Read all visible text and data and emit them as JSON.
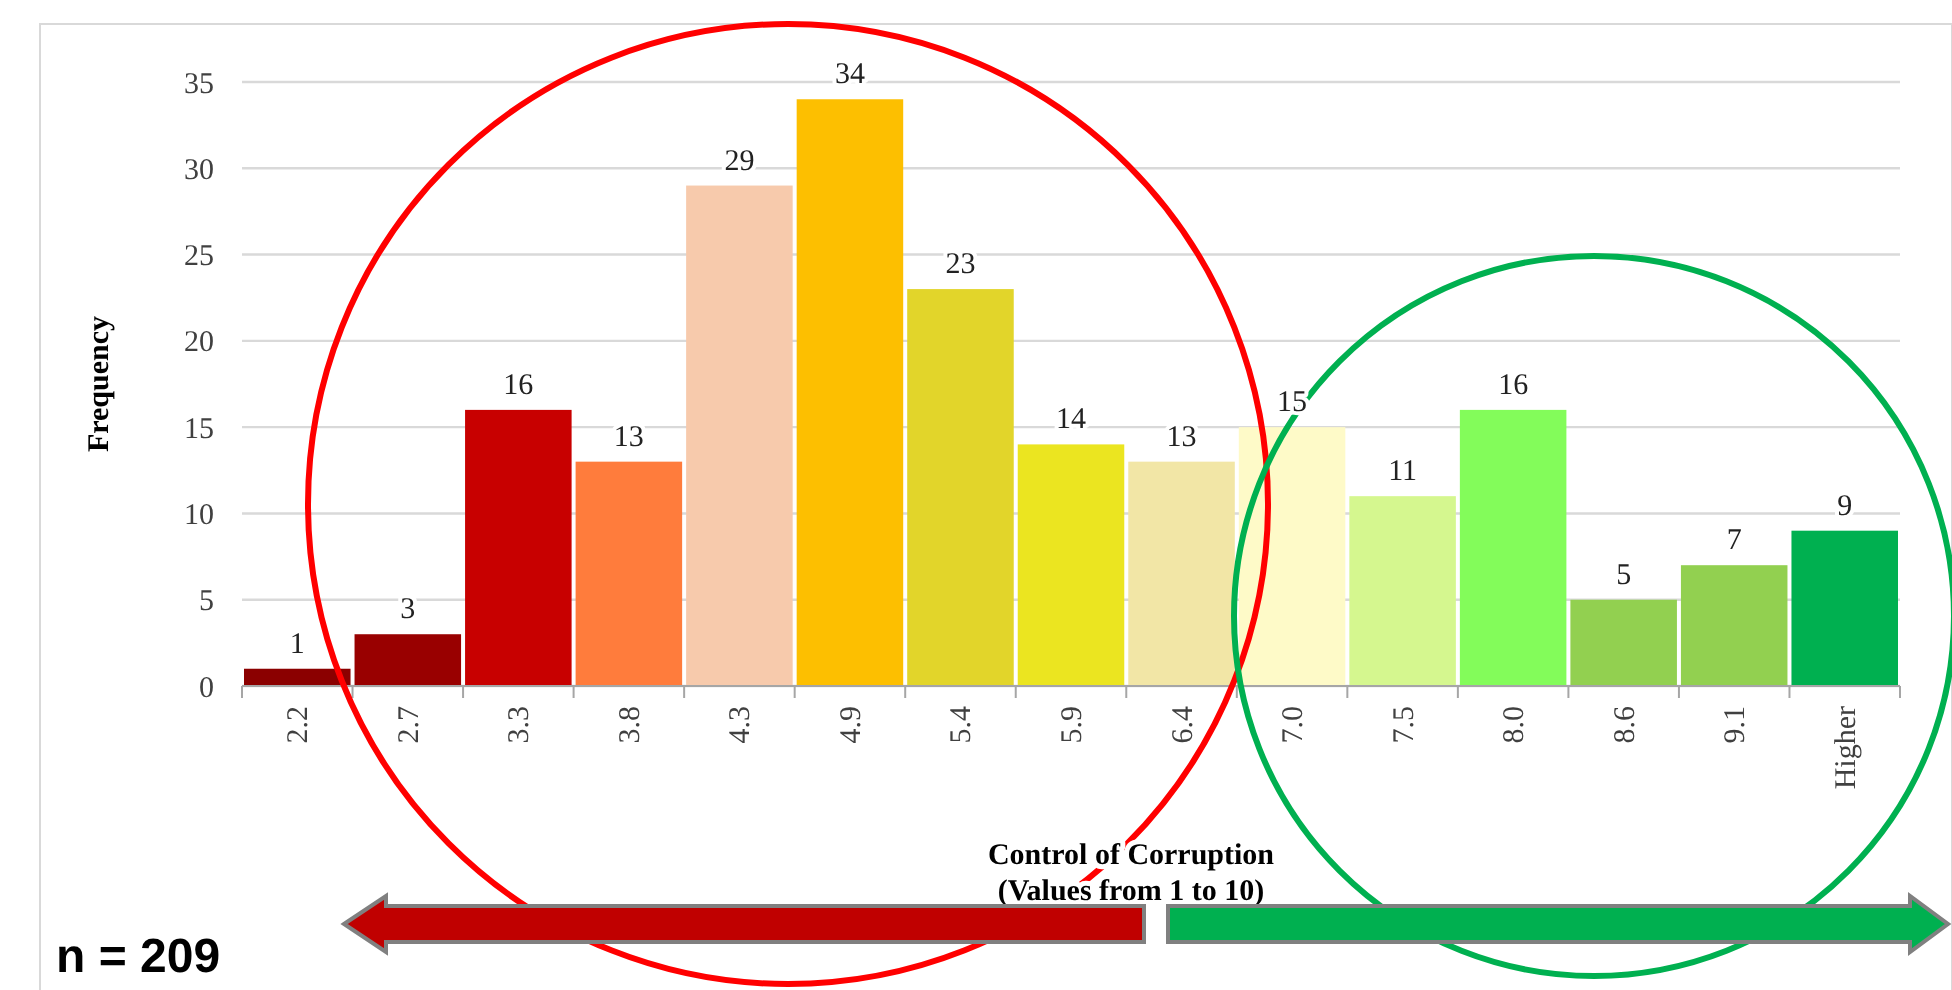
{
  "chart_data": {
    "type": "bar",
    "xlabel": "Control of Corruption\n(Values from 1 to 10)",
    "ylabel": "Frequency",
    "categories": [
      "2.2",
      "2.7",
      "3.3",
      "3.8",
      "4.3",
      "4.9",
      "5.4",
      "5.9",
      "6.4",
      "7.0",
      "7.5",
      "8.0",
      "8.6",
      "9.1",
      "Higher"
    ],
    "values": [
      1,
      3,
      16,
      13,
      29,
      34,
      23,
      14,
      13,
      15,
      11,
      16,
      5,
      7,
      9
    ],
    "colors": [
      "#8b0000",
      "#990000",
      "#c80000",
      "#ff7c3c",
      "#f7caac",
      "#fdbf00",
      "#e2d52a",
      "#ebe520",
      "#f2e6a6",
      "#fefac8",
      "#d5f78f",
      "#83fc5a",
      "#92d050",
      "#92d050",
      "#00b050"
    ],
    "ylim": [
      0,
      35
    ],
    "yticks": [
      0,
      5,
      10,
      15,
      20,
      25,
      30,
      35
    ],
    "grid": "y",
    "data_labels": true,
    "annotations": [
      "n = 209"
    ]
  }
}
